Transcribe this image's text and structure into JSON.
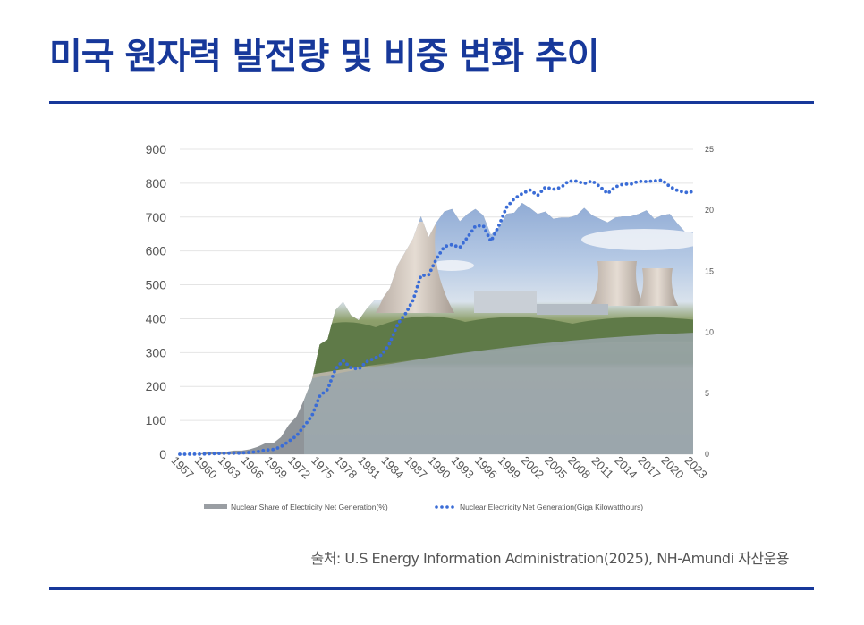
{
  "title": "미국 원자력 발전량 및 비중 변화 추이",
  "source": "출처: U.S Energy Information Administration(2025), NH-Amundi 자산운용",
  "colors": {
    "title": "#17389a",
    "rule": "#17389a",
    "area": "#8f9499",
    "dots": "#3a6cd6",
    "grid": "#e4e4e4",
    "axis_text": "#555555"
  },
  "chart_data": {
    "type": "area+line",
    "x_tick_labels": [
      "1957",
      "1960",
      "1963",
      "1966",
      "1969",
      "1972",
      "1975",
      "1978",
      "1981",
      "1984",
      "1987",
      "1990",
      "1993",
      "1996",
      "1999",
      "2002",
      "2005",
      "2008",
      "2011",
      "2014",
      "2017",
      "2020",
      "2023"
    ],
    "y_left": {
      "ticks": [
        "900",
        "800",
        "700",
        "600",
        "500",
        "400",
        "300",
        "200",
        "100",
        "0"
      ],
      "ylim": [
        0,
        900
      ]
    },
    "y_right": {
      "ticks": [
        "25",
        "20",
        "15",
        "10",
        "5",
        "0"
      ],
      "ylim": [
        0,
        25
      ]
    },
    "legend": {
      "placement": "bottom",
      "items": [
        "Nuclear Share of Electricity Net Generation(%)",
        "Nuclear Electricity Net Generation(Giga Kilowatthours)"
      ]
    },
    "series": [
      {
        "name": "Nuclear Share of Electricity Net Generation(%)",
        "kind": "area",
        "axis": "right",
        "x": [
          1957,
          1958,
          1959,
          1960,
          1961,
          1962,
          1963,
          1964,
          1965,
          1966,
          1967,
          1968,
          1969,
          1970,
          1971,
          1972,
          1973,
          1974,
          1975,
          1976,
          1977,
          1978,
          1979,
          1980,
          1981,
          1982,
          1983,
          1984,
          1985,
          1986,
          1987,
          1988,
          1989,
          1990,
          1991,
          1992,
          1993,
          1994,
          1995,
          1996,
          1997,
          1998,
          1999,
          2000,
          2001,
          2002,
          2003,
          2004,
          2005,
          2006,
          2007,
          2008,
          2009,
          2010,
          2011,
          2012,
          2013,
          2014,
          2015,
          2016,
          2017,
          2018,
          2019,
          2020,
          2021,
          2022,
          2023
        ],
        "values": [
          0.0,
          0.0,
          0.0,
          0.1,
          0.2,
          0.2,
          0.2,
          0.3,
          0.3,
          0.4,
          0.6,
          0.9,
          0.9,
          1.4,
          2.4,
          3.1,
          4.5,
          6.1,
          9.0,
          9.4,
          11.8,
          12.5,
          11.4,
          11.0,
          11.9,
          12.6,
          12.7,
          13.6,
          15.5,
          16.6,
          17.7,
          19.5,
          17.8,
          19.0,
          19.9,
          20.1,
          19.1,
          19.7,
          20.1,
          19.6,
          18.0,
          18.6,
          19.7,
          19.8,
          20.6,
          20.2,
          19.7,
          19.9,
          19.3,
          19.4,
          19.4,
          19.6,
          20.2,
          19.6,
          19.3,
          19.0,
          19.4,
          19.5,
          19.5,
          19.7,
          20.0,
          19.3,
          19.6,
          19.7,
          18.9,
          18.2,
          18.2
        ]
      },
      {
        "name": "Nuclear Electricity Net Generation(Giga Kilowatthours)",
        "kind": "dotted-line",
        "axis": "left",
        "x": [
          1957,
          1958,
          1959,
          1960,
          1961,
          1962,
          1963,
          1964,
          1965,
          1966,
          1967,
          1968,
          1969,
          1970,
          1971,
          1972,
          1973,
          1974,
          1975,
          1976,
          1977,
          1978,
          1979,
          1980,
          1981,
          1982,
          1983,
          1984,
          1985,
          1986,
          1987,
          1988,
          1989,
          1990,
          1991,
          1992,
          1993,
          1994,
          1995,
          1996,
          1997,
          1998,
          1999,
          2000,
          2001,
          2002,
          2003,
          2004,
          2005,
          2006,
          2007,
          2008,
          2009,
          2010,
          2011,
          2012,
          2013,
          2014,
          2015,
          2016,
          2017,
          2018,
          2019,
          2020,
          2021,
          2022,
          2023
        ],
        "values": [
          0,
          0.2,
          0.2,
          0.5,
          1.7,
          2.3,
          3.2,
          3.3,
          3.7,
          5.5,
          7.7,
          12.5,
          13.9,
          21.8,
          38.1,
          54.1,
          83.5,
          114.0,
          172.5,
          191.1,
          250.9,
          276.4,
          255.2,
          251.1,
          272.7,
          282.8,
          293.7,
          327.6,
          383.7,
          414.0,
          455.3,
          527.0,
          529.4,
          576.9,
          612.6,
          618.8,
          610.3,
          640.4,
          673.4,
          674.7,
          628.6,
          673.7,
          728.3,
          753.9,
          768.8,
          780.1,
          763.7,
          788.5,
          782.0,
          787.2,
          806.4,
          806.2,
          798.9,
          807.0,
          790.2,
          769.3,
          789.0,
          797.2,
          797.2,
          805.7,
          805.0,
          807.1,
          809.4,
          789.9,
          778.2,
          772.2,
          775.0
        ]
      }
    ]
  }
}
